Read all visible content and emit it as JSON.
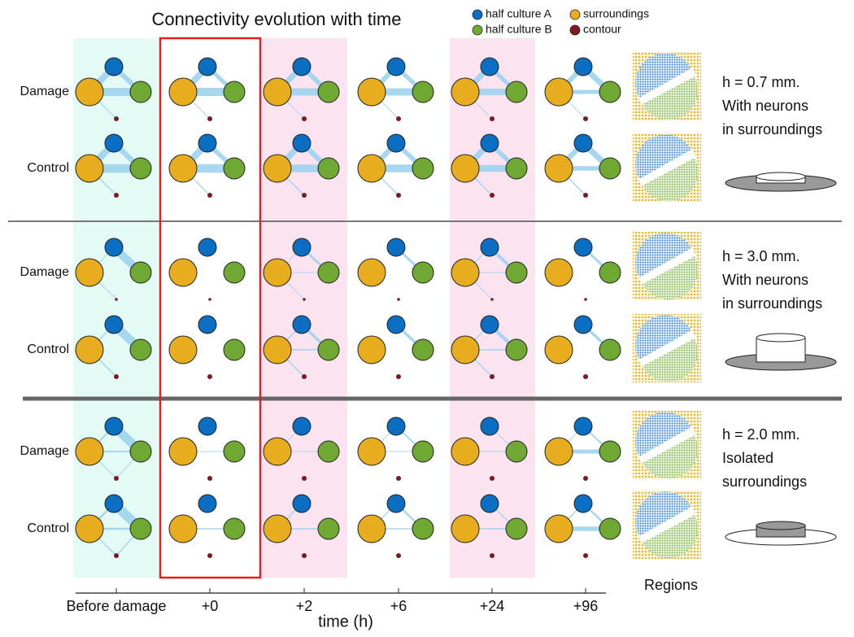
{
  "title": "Connectivity evolution with time",
  "legend": [
    {
      "label": "half culture A",
      "color": "#0a6fc2"
    },
    {
      "label": "half culture B",
      "color": "#6fa832"
    },
    {
      "label": "surroundings",
      "color": "#e8ad1e"
    },
    {
      "label": "contour",
      "color": "#7a1a22"
    }
  ],
  "time_axis": {
    "ticks": [
      "Before damage",
      "+0",
      "+2",
      "+6",
      "+24",
      "+96"
    ],
    "label": "time (h)"
  },
  "groups": [
    {
      "rows": [
        "Damage",
        "Control"
      ],
      "description": [
        "h = 0.7 mm.",
        "With neurons",
        "in surroundings"
      ]
    },
    {
      "rows": [
        "Damage",
        "Control"
      ],
      "description": [
        "h = 3.0 mm.",
        "With neurons",
        "in surroundings"
      ]
    },
    {
      "rows": [
        "Damage",
        "Control"
      ],
      "description": [
        "h = 2.0 mm.",
        "Isolated",
        "surroundings"
      ]
    }
  ],
  "regions_label": "Regions"
}
